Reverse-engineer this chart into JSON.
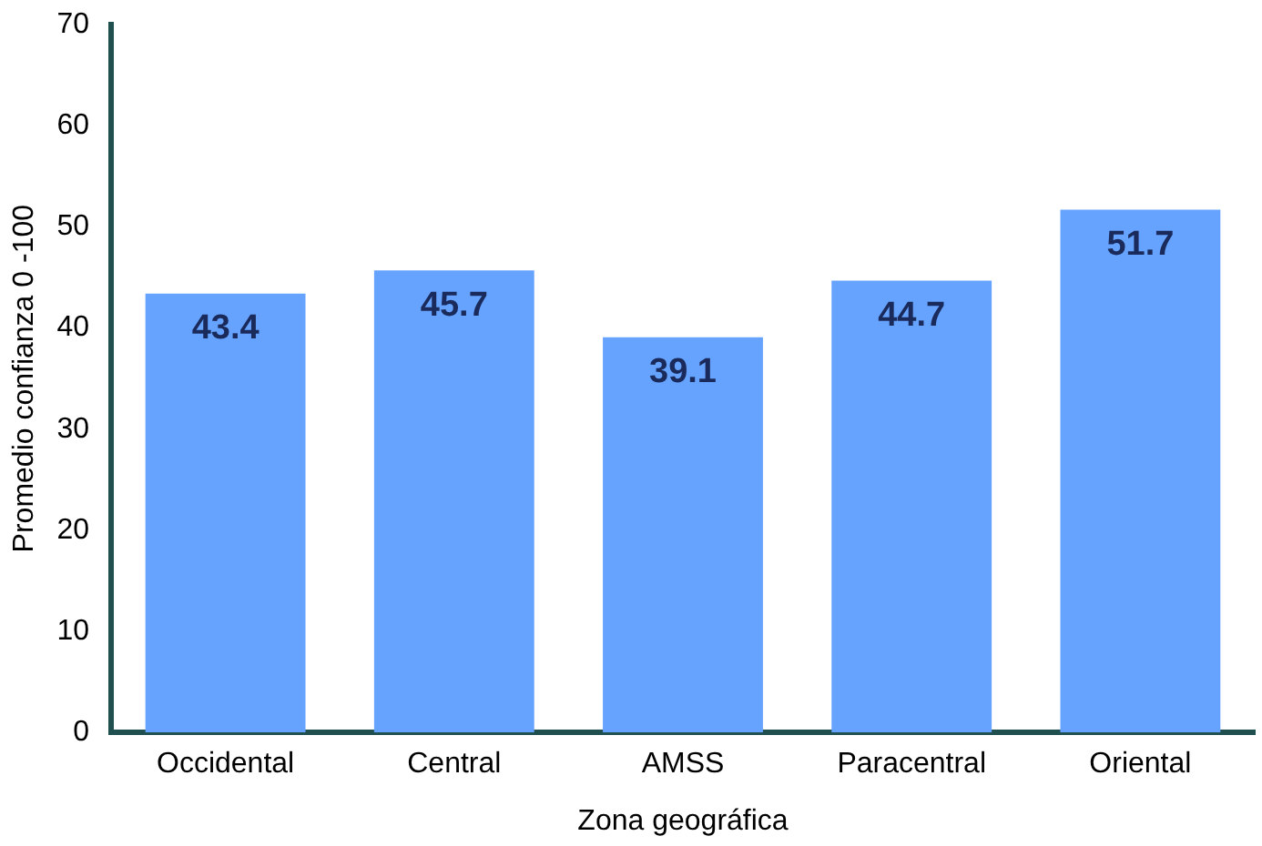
{
  "chart_data": {
    "type": "bar",
    "xlabel": "Zona geográfica",
    "ylabel": "Promedio confianza 0 -100",
    "categories": [
      "Occidental",
      "Central",
      "AMSS",
      "Paracentral",
      "Oriental"
    ],
    "values": [
      43.4,
      45.7,
      39.1,
      44.7,
      51.7
    ],
    "color": "#66a3ff",
    "ylim": [
      0,
      70
    ],
    "yticks": [
      0,
      10,
      20,
      30,
      40,
      50,
      60,
      70
    ],
    "grid": false,
    "legend": false,
    "data_labels": true
  }
}
